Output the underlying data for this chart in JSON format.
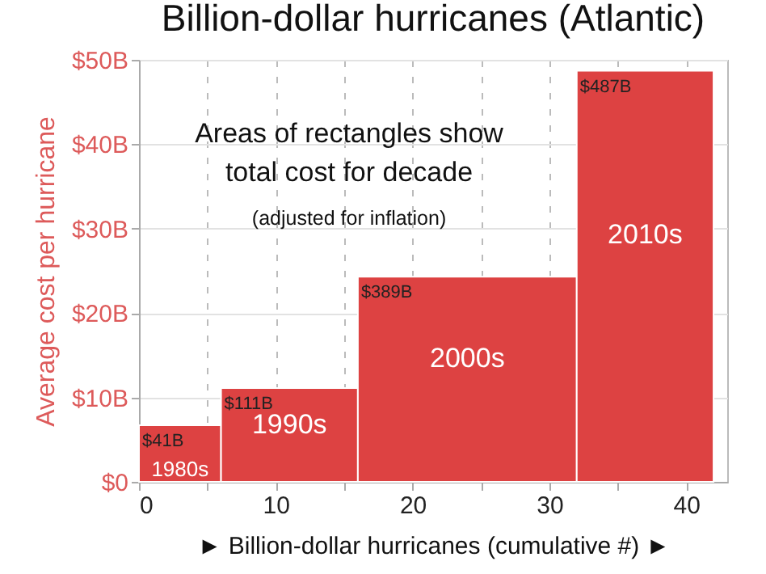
{
  "chart_data": {
    "type": "histogram",
    "title": "Billion-dollar hurricanes (Atlantic)",
    "xlabel": "► Billion-dollar hurricanes (cumulative #) ►",
    "ylabel": "Average cost per hurricane",
    "bins": [
      0,
      6,
      16,
      32,
      42
    ],
    "values": [
      6.7,
      11.1,
      24.3,
      48.7
    ],
    "color": "#dd4242",
    "xlim": [
      0,
      43
    ],
    "ylim": [
      0,
      50
    ],
    "xticks": [
      0,
      {
        "value": 5,
        "label": null
      },
      10,
      {
        "value": 15,
        "label": null
      },
      20,
      {
        "value": 25,
        "label": null
      },
      30,
      {
        "value": 35,
        "label": null
      },
      40
    ],
    "yticks": [
      {
        "value": 0,
        "label": "$0"
      },
      {
        "value": 10,
        "label": "$10B"
      },
      {
        "value": 20,
        "label": "$20B"
      },
      {
        "value": 30,
        "label": "$30B"
      },
      {
        "value": 40,
        "label": "$40B"
      },
      {
        "value": 50,
        "label": "$50B"
      }
    ],
    "grid": true,
    "annotations": [
      "Areas of rectangles show",
      "total cost for decade",
      "(adjusted for inflation)",
      "$41B",
      "$111B",
      "$389B",
      "$487B",
      "1980s",
      "1990s",
      "2000s",
      "2010s"
    ]
  }
}
